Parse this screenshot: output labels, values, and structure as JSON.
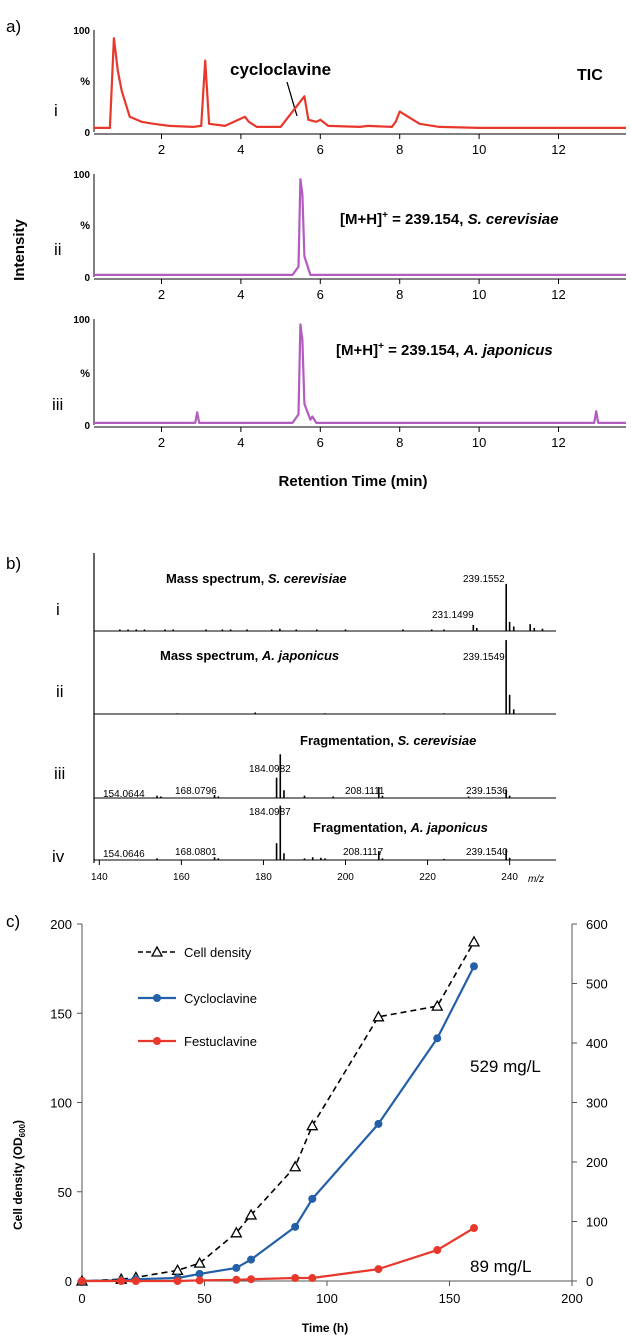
{
  "panel_a": {
    "label": "a)",
    "ylabel": "Intensity",
    "xlabel": "Retention Time (min)",
    "xticks": [
      "2",
      "4",
      "6",
      "8",
      "10",
      "12"
    ],
    "traces": [
      {
        "roman": "i",
        "ytop": "100",
        "ymid": "%",
        "ybot": "0",
        "caption": "TIC",
        "annotation": "cycloclavine",
        "color": "#e8382b"
      },
      {
        "roman": "ii",
        "ytop": "100",
        "ymid": "%",
        "ybot": "0",
        "caption_main": "[M+H]",
        "caption_sup": "+",
        "caption_rest": " = 239.154, ",
        "caption_species": "S. cerevisiae",
        "color": "#b25cc0"
      },
      {
        "roman": "iii",
        "ytop": "100",
        "ymid": "%",
        "ybot": "0",
        "caption_main": "[M+H]",
        "caption_sup": "+",
        "caption_rest": " = 239.154, ",
        "caption_species": "A. japonicus",
        "color": "#b25cc0"
      }
    ]
  },
  "panel_b": {
    "label": "b)",
    "xunit": "m/z",
    "xticks": [
      "140",
      "160",
      "180",
      "200",
      "220",
      "240"
    ],
    "spectra": [
      {
        "roman": "i",
        "title": "Mass spectrum, ",
        "species": "S. cerevisiae",
        "peak_labels": [
          "231.1499",
          "239.1552"
        ]
      },
      {
        "roman": "ii",
        "title": "Mass spectrum, ",
        "species": "A. japonicus",
        "peak_labels": [
          "239.1549"
        ]
      },
      {
        "roman": "iii",
        "title": "Fragmentation, ",
        "species": "S. cerevisiae",
        "peak_labels": [
          "154.0644",
          "168.0796",
          "184.0982",
          "208.1111",
          "239.1536"
        ]
      },
      {
        "roman": "iv",
        "title": "Fragmentation, ",
        "species": "A. japonicus",
        "peak_labels": [
          "154.0646",
          "168.0801",
          "184.0987",
          "208.1117",
          "239.1540"
        ]
      }
    ]
  },
  "panel_c": {
    "label": "c)",
    "xlabel": "Time (h)",
    "ylabel_main": "Cell density (OD",
    "ylabel_sub": "600",
    "ylabel_end": ")",
    "xticks": [
      "0",
      "50",
      "100",
      "150",
      "200"
    ],
    "yticks_left": [
      "0",
      "50",
      "100",
      "150",
      "200"
    ],
    "yticks_right": [
      "0",
      "100",
      "200",
      "300",
      "400",
      "500",
      "600"
    ],
    "legend": [
      "Cell density",
      "Cycloclavine",
      "Festuclavine"
    ],
    "annotations": [
      "529 mg/L",
      "89 mg/L"
    ]
  },
  "chart_data": [
    {
      "type": "line",
      "title": "",
      "xlabel": "Retention Time (min)",
      "ylabel": "Intensity",
      "xlim": [
        0.3,
        13.7
      ],
      "ylim": [
        0,
        100
      ],
      "series": [
        {
          "name": "TIC",
          "x": [
            0.3,
            0.7,
            0.8,
            0.9,
            1.0,
            1.2,
            1.5,
            1.8,
            2.2,
            2.8,
            3.0,
            3.1,
            3.2,
            3.6,
            4.1,
            4.2,
            4.4,
            5.0,
            5.6,
            5.7,
            5.9,
            6.0,
            6.2,
            7.0,
            7.2,
            7.8,
            7.9,
            8.0,
            8.5,
            9.0,
            10.0,
            12.0,
            13.7
          ],
          "y": [
            4,
            4,
            92,
            60,
            40,
            15,
            10,
            8,
            6,
            5,
            6,
            70,
            8,
            6,
            15,
            10,
            5,
            5,
            35,
            12,
            10,
            12,
            6,
            5,
            6,
            5,
            10,
            20,
            8,
            5,
            4,
            4,
            4
          ]
        },
        {
          "name": "[M+H]+ = 239.154, S. cerevisiae",
          "x": [
            0.3,
            5.3,
            5.45,
            5.5,
            5.55,
            5.6,
            5.75,
            13.7
          ],
          "y": [
            2,
            2,
            10,
            95,
            80,
            20,
            2,
            2
          ]
        },
        {
          "name": "[M+H]+ = 239.154, A. japonicus",
          "x": [
            0.3,
            2.85,
            2.9,
            2.95,
            5.3,
            5.45,
            5.5,
            5.55,
            5.6,
            5.75,
            5.8,
            5.9,
            12.9,
            12.95,
            13.0,
            13.7
          ],
          "y": [
            2,
            2,
            12,
            2,
            2,
            10,
            95,
            80,
            20,
            5,
            8,
            2,
            2,
            13,
            2,
            2
          ]
        }
      ]
    },
    {
      "type": "bar",
      "title": "",
      "xlabel": "m/z",
      "xlim": [
        138.7,
        251.3
      ],
      "series": [
        {
          "name": "Mass spectrum, S. cerevisiae",
          "x": [
            145,
            147,
            149,
            151,
            156,
            158,
            166,
            170,
            172,
            176,
            182,
            184,
            188,
            193,
            200,
            214,
            221,
            224,
            231.15,
            232,
            239.16,
            240,
            241,
            245,
            246,
            248
          ],
          "values": [
            2,
            2,
            2,
            2,
            2,
            2,
            2,
            2,
            2,
            2,
            2,
            3,
            2,
            2,
            2,
            2,
            2,
            2,
            8,
            4,
            62,
            12,
            6,
            9,
            4,
            3
          ]
        },
        {
          "name": "Mass spectrum, A. japonicus",
          "x": [
            159,
            178,
            195,
            224,
            239.15,
            240,
            241
          ],
          "values": [
            1,
            2,
            1,
            1,
            96,
            25,
            6
          ]
        },
        {
          "name": "Fragmentation, S. cerevisiae",
          "x": [
            154.06,
            155,
            168.08,
            169,
            184.1,
            183.2,
            185,
            190,
            197,
            208.11,
            209,
            230,
            239.15,
            240
          ],
          "values": [
            3,
            2,
            4,
            2,
            56,
            26,
            10,
            3,
            2,
            14,
            3,
            2,
            11,
            3
          ]
        },
        {
          "name": "Fragmentation, A. japonicus",
          "x": [
            154.06,
            168.08,
            169,
            184.1,
            183.2,
            185,
            190,
            192,
            194,
            195,
            208.12,
            209,
            224,
            239.15,
            240
          ],
          "values": [
            3,
            5,
            3,
            97,
            30,
            12,
            3,
            5,
            4,
            3,
            16,
            3,
            2,
            19,
            4
          ]
        }
      ]
    },
    {
      "type": "line",
      "title": "",
      "xlabel": "Time (h)",
      "ylabel": "Cell density (OD600)",
      "xlim": [
        0,
        200
      ],
      "ylim": [
        0,
        200
      ],
      "ylim_right": [
        0,
        600
      ],
      "series": [
        {
          "name": "Cell density",
          "axis": "left",
          "x": [
            0,
            16,
            22,
            39,
            48,
            63,
            69,
            87,
            94,
            121,
            145,
            160
          ],
          "y": [
            0,
            1,
            2,
            6,
            10,
            27,
            37,
            64,
            87,
            148,
            154,
            190
          ]
        },
        {
          "name": "Cycloclavine",
          "axis": "right",
          "x": [
            0,
            16,
            22,
            39,
            48,
            63,
            69,
            87,
            94,
            121,
            145,
            160
          ],
          "y": [
            0,
            1,
            3,
            5,
            12,
            22,
            36,
            91,
            138,
            264,
            408,
            529
          ]
        },
        {
          "name": "Festuclavine",
          "axis": "right",
          "x": [
            0,
            16,
            22,
            39,
            48,
            63,
            69,
            87,
            94,
            121,
            145,
            160
          ],
          "y": [
            0,
            0,
            0,
            0,
            1,
            2,
            3,
            5,
            5,
            20,
            52,
            89
          ]
        }
      ]
    }
  ]
}
